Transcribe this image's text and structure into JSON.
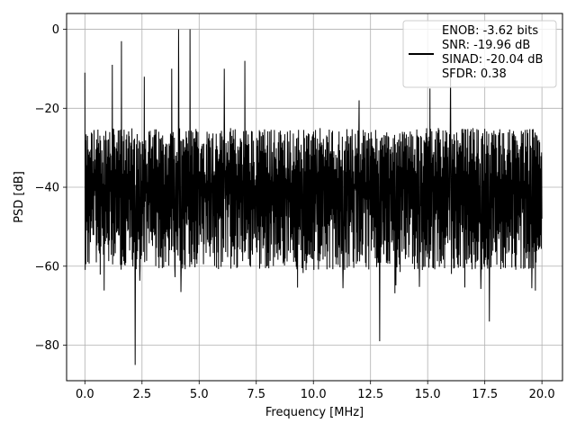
{
  "chart_data": {
    "type": "line",
    "xlabel": "Frequency [MHz]",
    "ylabel": "PSD [dB]",
    "xlim": [
      -0.8,
      20.9
    ],
    "ylim": [
      -89,
      4
    ],
    "xticks": [
      0.0,
      2.5,
      5.0,
      7.5,
      10.0,
      12.5,
      15.0,
      17.5,
      20.0
    ],
    "xtick_labels": [
      "0.0",
      "2.5",
      "5.0",
      "7.5",
      "10.0",
      "12.5",
      "15.0",
      "17.5",
      "20.0"
    ],
    "yticks": [
      0,
      -20,
      -40,
      -60,
      -80
    ],
    "ytick_labels": [
      "0",
      "−20",
      "−40",
      "−60",
      "−80"
    ],
    "grid": true,
    "legend_position": "top-right",
    "series": [
      {
        "color": "#000000",
        "x_range": [
          0.0,
          20.0
        ],
        "noise_floor_db": [
          -61,
          -25
        ],
        "median_db": -40,
        "spikes": [
          {
            "x": 0.0,
            "y": -11
          },
          {
            "x": 1.2,
            "y": -9
          },
          {
            "x": 1.6,
            "y": -3
          },
          {
            "x": 2.2,
            "y": -85
          },
          {
            "x": 2.6,
            "y": -12
          },
          {
            "x": 3.8,
            "y": -10
          },
          {
            "x": 4.1,
            "y": 0
          },
          {
            "x": 4.6,
            "y": 0
          },
          {
            "x": 6.1,
            "y": -10
          },
          {
            "x": 7.0,
            "y": -8
          },
          {
            "x": 12.0,
            "y": -18
          },
          {
            "x": 12.9,
            "y": -79
          },
          {
            "x": 15.1,
            "y": -15
          },
          {
            "x": 16.0,
            "y": -10
          },
          {
            "x": 17.7,
            "y": -74
          }
        ]
      }
    ],
    "legend": {
      "lines": [
        "ENOB: -3.62 bits",
        "SNR: -19.96 dB",
        "SINAD: -20.04 dB",
        "SFDR: 0.38"
      ]
    }
  }
}
